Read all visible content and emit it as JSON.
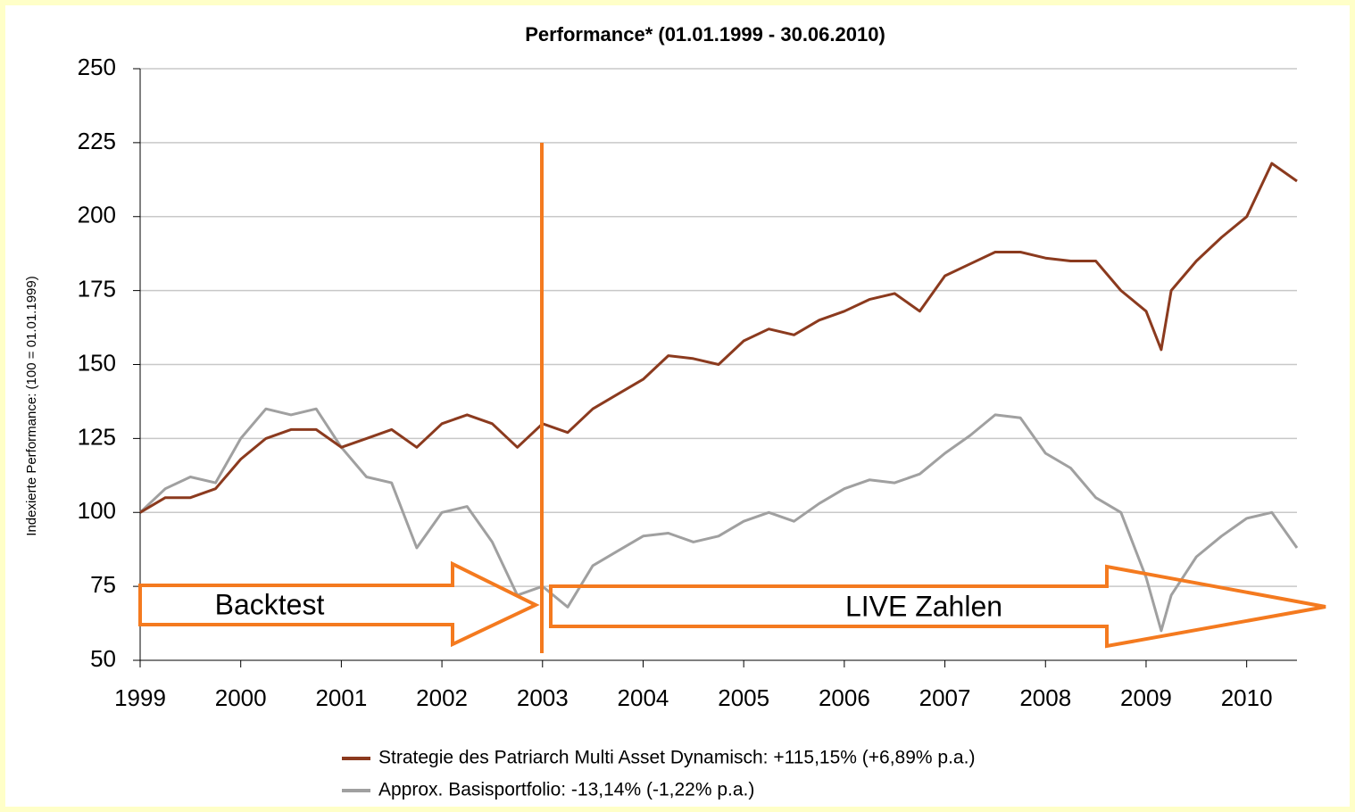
{
  "chart_data": {
    "type": "line",
    "title": "Performance* (01.01.1999 - 30.06.2010)",
    "y_label": "Indexierte Performance: (100 = 01.01.1999)",
    "x": [
      1999,
      1999.25,
      1999.5,
      1999.75,
      2000,
      2000.25,
      2000.5,
      2000.75,
      2001,
      2001.25,
      2001.5,
      2001.75,
      2002,
      2002.25,
      2002.5,
      2002.75,
      2003,
      2003.25,
      2003.5,
      2003.75,
      2004,
      2004.25,
      2004.5,
      2004.75,
      2005,
      2005.25,
      2005.5,
      2005.75,
      2006,
      2006.25,
      2006.5,
      2006.75,
      2007,
      2007.25,
      2007.5,
      2007.75,
      2008,
      2008.25,
      2008.5,
      2008.75,
      2009,
      2009.15,
      2009.25,
      2009.5,
      2009.75,
      2010,
      2010.25,
      2010.5
    ],
    "series": [
      {
        "name": "Strategie des Patriarch Multi Asset Dynamisch: +115,15% (+6,89% p.a.)",
        "color": "#8b3a1e",
        "values": [
          100,
          105,
          105,
          108,
          118,
          125,
          128,
          128,
          122,
          125,
          128,
          122,
          130,
          133,
          130,
          122,
          130,
          127,
          135,
          140,
          145,
          153,
          152,
          150,
          158,
          162,
          160,
          165,
          168,
          172,
          174,
          168,
          180,
          184,
          188,
          188,
          186,
          185,
          185,
          175,
          168,
          155,
          175,
          185,
          193,
          200,
          218,
          212
        ]
      },
      {
        "name": "Approx. Basisportfolio: -13,14% (-1,22% p.a.)",
        "color": "#a0a0a0",
        "values": [
          100,
          108,
          112,
          110,
          125,
          135,
          133,
          135,
          122,
          112,
          110,
          88,
          100,
          102,
          90,
          72,
          75,
          68,
          82,
          87,
          92,
          93,
          90,
          92,
          97,
          100,
          97,
          103,
          108,
          111,
          110,
          113,
          120,
          126,
          133,
          132,
          120,
          115,
          105,
          100,
          78,
          60,
          72,
          85,
          92,
          98,
          100,
          88
        ]
      }
    ],
    "xlim": [
      1999,
      2010.5
    ],
    "xticks": [
      1999,
      2000,
      2001,
      2002,
      2003,
      2004,
      2005,
      2006,
      2007,
      2008,
      2009,
      2010
    ],
    "ylim": [
      50,
      250
    ],
    "yticks": [
      50,
      75,
      100,
      125,
      150,
      175,
      200,
      225,
      250
    ],
    "grid": true,
    "annotations": [
      "Backtest",
      "LIVE Zahlen"
    ],
    "annotation_color": "#f47a1f"
  }
}
